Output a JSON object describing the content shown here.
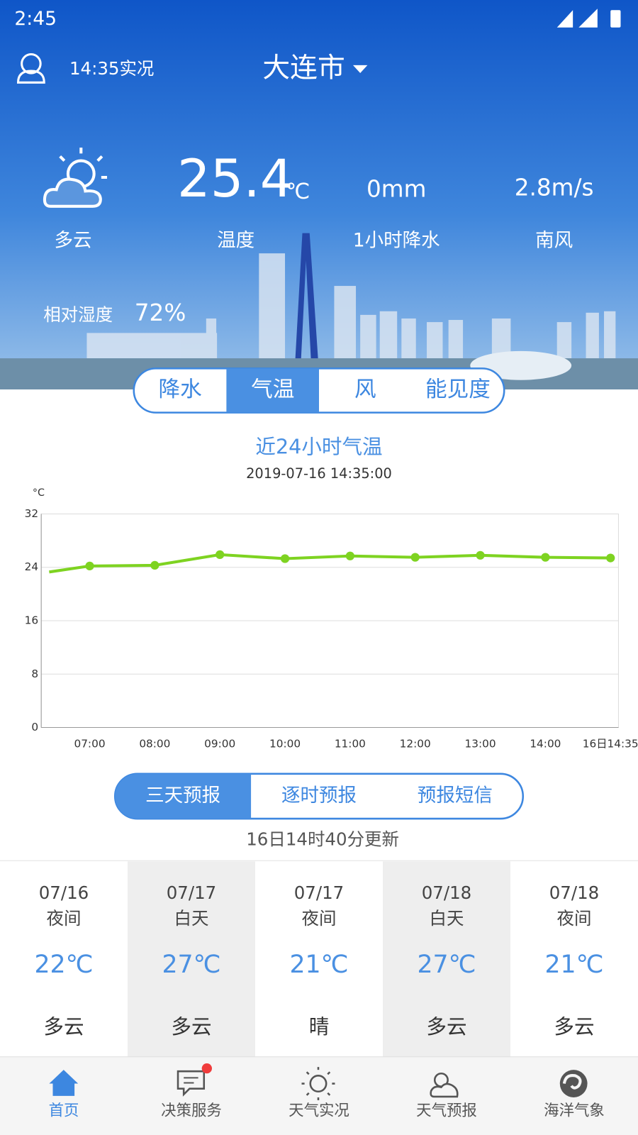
{
  "status_bar": {
    "time": "2:45"
  },
  "header": {
    "observed": "14:35实况",
    "city": "大连市"
  },
  "current": {
    "condition": "多云",
    "temperature": "25.4",
    "temperature_unit": "℃",
    "temperature_label": "温度",
    "precip": "0mm",
    "precip_label": "1小时降水",
    "wind_speed": "2.8m/s",
    "wind_direction": "南风",
    "humidity_label": "相对湿度",
    "humidity": "72%"
  },
  "chart_tabs": {
    "items": [
      "降水",
      "气温",
      "风",
      "能见度"
    ],
    "active": 1
  },
  "chart_data": {
    "type": "line",
    "title": "近24小时气温",
    "subtitle": "2019-07-16 14:35:00",
    "y_label": "°C",
    "categories": [
      null,
      "07:00",
      "08:00",
      "09:00",
      "10:00",
      "11:00",
      "12:00",
      "13:00",
      "14:00",
      "16日14:35"
    ],
    "values": [
      23.3,
      24.2,
      24.3,
      25.9,
      25.3,
      25.7,
      25.5,
      25.8,
      25.5,
      25.4
    ],
    "color": "#7ed321",
    "ylim": [
      0,
      32
    ],
    "yticks": [
      0,
      8,
      16,
      24,
      32
    ],
    "grid": true
  },
  "forecast_tabs": {
    "items": [
      "三天预报",
      "逐时预报",
      "预报短信"
    ],
    "active": 0
  },
  "forecast_update": "16日14时40分更新",
  "forecast": [
    {
      "date": "07/16",
      "period": "夜间",
      "temp": "22℃",
      "weather": "多云"
    },
    {
      "date": "07/17",
      "period": "白天",
      "temp": "27℃",
      "weather": "多云"
    },
    {
      "date": "07/17",
      "period": "夜间",
      "temp": "21℃",
      "weather": "晴"
    },
    {
      "date": "07/18",
      "period": "白天",
      "temp": "27℃",
      "weather": "多云"
    },
    {
      "date": "07/18",
      "period": "夜间",
      "temp": "21℃",
      "weather": "多云"
    }
  ],
  "nav": {
    "items": [
      "首页",
      "决策服务",
      "天气实况",
      "天气预报",
      "海洋气象"
    ],
    "active": 0
  }
}
